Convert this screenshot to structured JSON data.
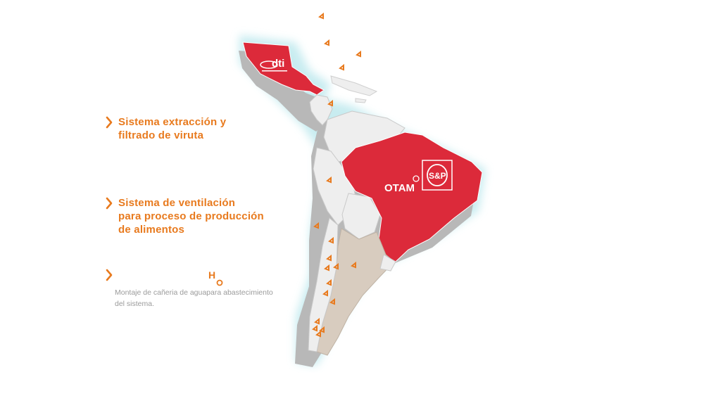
{
  "features": [
    {
      "label": "Sistema extracción y\nfiltrado de viruta"
    },
    {
      "label": "Sistema de ventilación\npara proceso de producción\nde alimentos"
    },
    {
      "label": ""
    }
  ],
  "description": "Montaje de cañeria de aguapara abastecimiento\ndel sistema.",
  "logos": {
    "mexico": "dti",
    "brazil_left": "OTAM",
    "brazil_right": "S&P"
  },
  "marker_letter": "H",
  "colors": {
    "accent": "#e87a1e",
    "highlight_country": "#dc2a3a",
    "other_country": "#eeeeee",
    "argentina": "#d8ccbf",
    "glow": "#bfe9ee",
    "shadow": "#b3b3b3"
  }
}
